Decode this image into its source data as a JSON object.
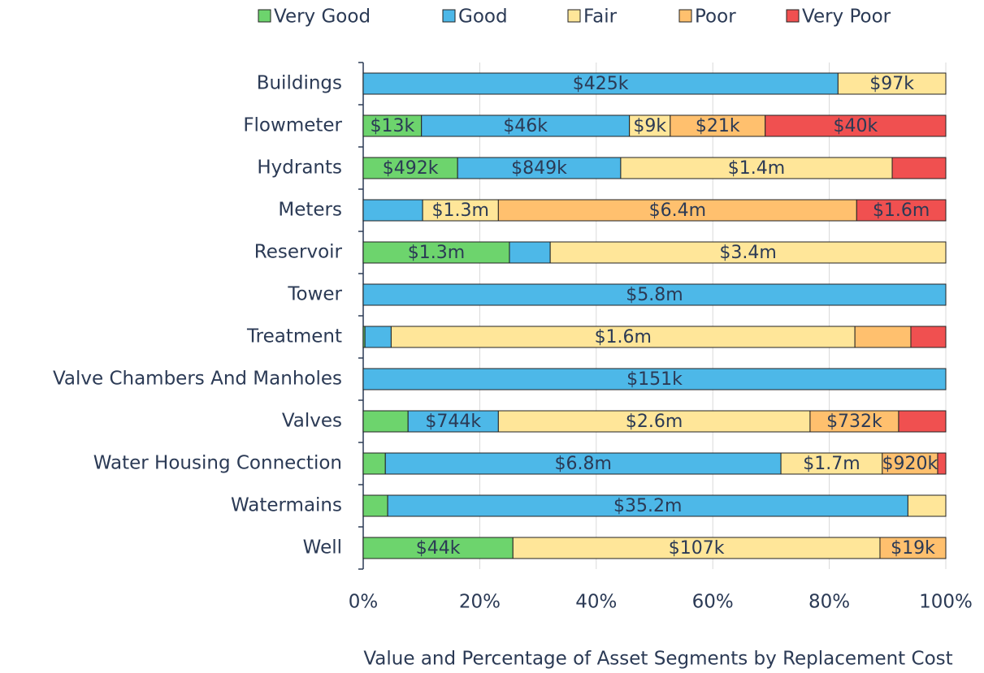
{
  "chart_data": {
    "type": "stacked_barh",
    "title": "Value and Percentage of Asset Segments by Replacement Cost",
    "categories": [
      "Buildings",
      "Flowmeter",
      "Hydrants",
      "Meters",
      "Reservoir",
      "Tower",
      "Treatment",
      "Valve Chambers And Manholes",
      "Valves",
      "Water Housing Connection",
      "Watermains",
      "Well"
    ],
    "series": [
      {
        "name": "Very Good",
        "color": "#6dd46d",
        "values": [
          0,
          10,
          16.2,
          0,
          25.1,
          0,
          0.3,
          0,
          7.7,
          3.8,
          4.2,
          25.7
        ],
        "data_labels": [
          null,
          "$13k",
          "$492k",
          null,
          "$1.3m",
          null,
          null,
          null,
          null,
          null,
          null,
          "$44k"
        ]
      },
      {
        "name": "Good",
        "color": "#4db8e8",
        "values": [
          81.5,
          35.7,
          28,
          10.2,
          7,
          100,
          4.5,
          100,
          15.5,
          67.9,
          89.3,
          0
        ],
        "data_labels": [
          "$425k",
          "$46k",
          "$849k",
          null,
          null,
          "$5.8m",
          null,
          "$151k",
          "$744k",
          "$6.8m",
          "$35.2m",
          null
        ]
      },
      {
        "name": "Fair",
        "color": "#ffe699",
        "values": [
          18.5,
          7,
          46.6,
          13,
          67.9,
          0,
          79.6,
          0,
          53.5,
          17.4,
          6.5,
          63
        ],
        "data_labels": [
          "$97k",
          "$9k",
          "$1.4m",
          "$1.3m",
          "$3.4m",
          null,
          "$1.6m",
          null,
          "$2.6m",
          "$1.7m",
          null,
          "$107k"
        ]
      },
      {
        "name": "Poor",
        "color": "#ffc06e",
        "values": [
          0,
          16.3,
          0,
          61.5,
          0,
          0,
          9.6,
          0,
          15.2,
          9.5,
          0,
          11.3
        ],
        "data_labels": [
          null,
          "$21k",
          null,
          "$6.4m",
          null,
          null,
          null,
          null,
          "$732k",
          "$920k",
          null,
          "$19k"
        ]
      },
      {
        "name": "Very Poor",
        "color": "#f05050",
        "values": [
          0,
          31,
          9.2,
          15.3,
          0,
          0,
          6,
          0,
          8.1,
          1.4,
          0,
          0
        ],
        "data_labels": [
          null,
          "$40k",
          null,
          "$1.6m",
          null,
          null,
          null,
          null,
          null,
          null,
          null,
          null
        ]
      }
    ],
    "xlim": [
      0,
      100
    ],
    "xticks": [
      {
        "value": 0,
        "label": "0%"
      },
      {
        "value": 20,
        "label": "20%"
      },
      {
        "value": 40,
        "label": "40%"
      },
      {
        "value": 60,
        "label": "60%"
      },
      {
        "value": 80,
        "label": "80%"
      },
      {
        "value": 100,
        "label": "100%"
      }
    ],
    "grid": true,
    "legend": "top"
  }
}
